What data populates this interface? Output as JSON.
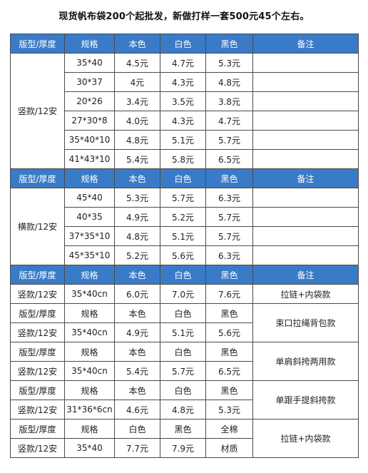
{
  "title": "现货帆布袋200个起批发，新做打样一套500元45个左右。",
  "header": [
    "版型/厚度",
    "规格",
    "本色",
    "白色",
    "黑色",
    "备注"
  ],
  "section1": {
    "type": "竖款/12安",
    "rows": [
      [
        "35*40",
        "4.5元",
        "4.7元",
        "5.3元",
        ""
      ],
      [
        "30*37",
        "4元",
        "4.3元",
        "4.8元",
        ""
      ],
      [
        "20*26",
        "3.4元",
        "3.5元",
        "3.8元",
        ""
      ],
      [
        "27*30*8",
        "4.0元",
        "4.3元",
        "4.7元",
        ""
      ],
      [
        "35*40*10",
        "4.8元",
        "5.1元",
        "5.7元",
        ""
      ],
      [
        "41*43*10",
        "5.4元",
        "5.8元",
        "6.5元",
        ""
      ]
    ]
  },
  "section2": {
    "type": "横款/12安",
    "rows": [
      [
        "45*40",
        "5.3元",
        "5.7元",
        "6.3元",
        ""
      ],
      [
        "40*35",
        "4.9元",
        "5.2元",
        "5.7元",
        ""
      ],
      [
        "37*35*10",
        "4.8元",
        "5.1元",
        "5.7元",
        ""
      ],
      [
        "45*35*10",
        "5.2元",
        "5.6元",
        "6.3元",
        ""
      ]
    ]
  },
  "section3": {
    "row": [
      "竖款/12安",
      "35*40cn",
      "6.0元",
      "7.0元",
      "7.6元",
      "拉链+内袋款"
    ]
  },
  "blocks": [
    {
      "head": [
        "版型/厚度",
        "规格",
        "本色",
        "白色",
        "黑色"
      ],
      "data": [
        "竖款/12安",
        "35*40cn",
        "4.9元",
        "5.1元",
        "5.6元"
      ],
      "note": "束口拉绳背包款"
    },
    {
      "head": [
        "版型/厚度",
        "规格",
        "本色",
        "白色",
        "黑色"
      ],
      "data": [
        "竖款/12安",
        "35*40cn",
        "5.4元",
        "5.7元",
        "6.5元"
      ],
      "note": "单肩斜挎两用款"
    },
    {
      "head": [
        "版型/厚度",
        "规格",
        "本色",
        "白色",
        "黑色"
      ],
      "data": [
        "竖款/12安",
        "31*36*6cn",
        "4.6元",
        "4.8元",
        "5.3元"
      ],
      "note": "单跟手提斜挎款"
    },
    {
      "head": [
        "版型/厚度",
        "规格",
        "白色",
        "黑色",
        "全棉"
      ],
      "data": [
        "竖款/12安",
        "35*40",
        "7.7元",
        "7.9元",
        "材质"
      ],
      "note": "拉链+内袋款"
    }
  ],
  "colors": {
    "header_bg": "#3a7bc8",
    "header_text": "#ffffff",
    "border": "#4a4a4a"
  }
}
